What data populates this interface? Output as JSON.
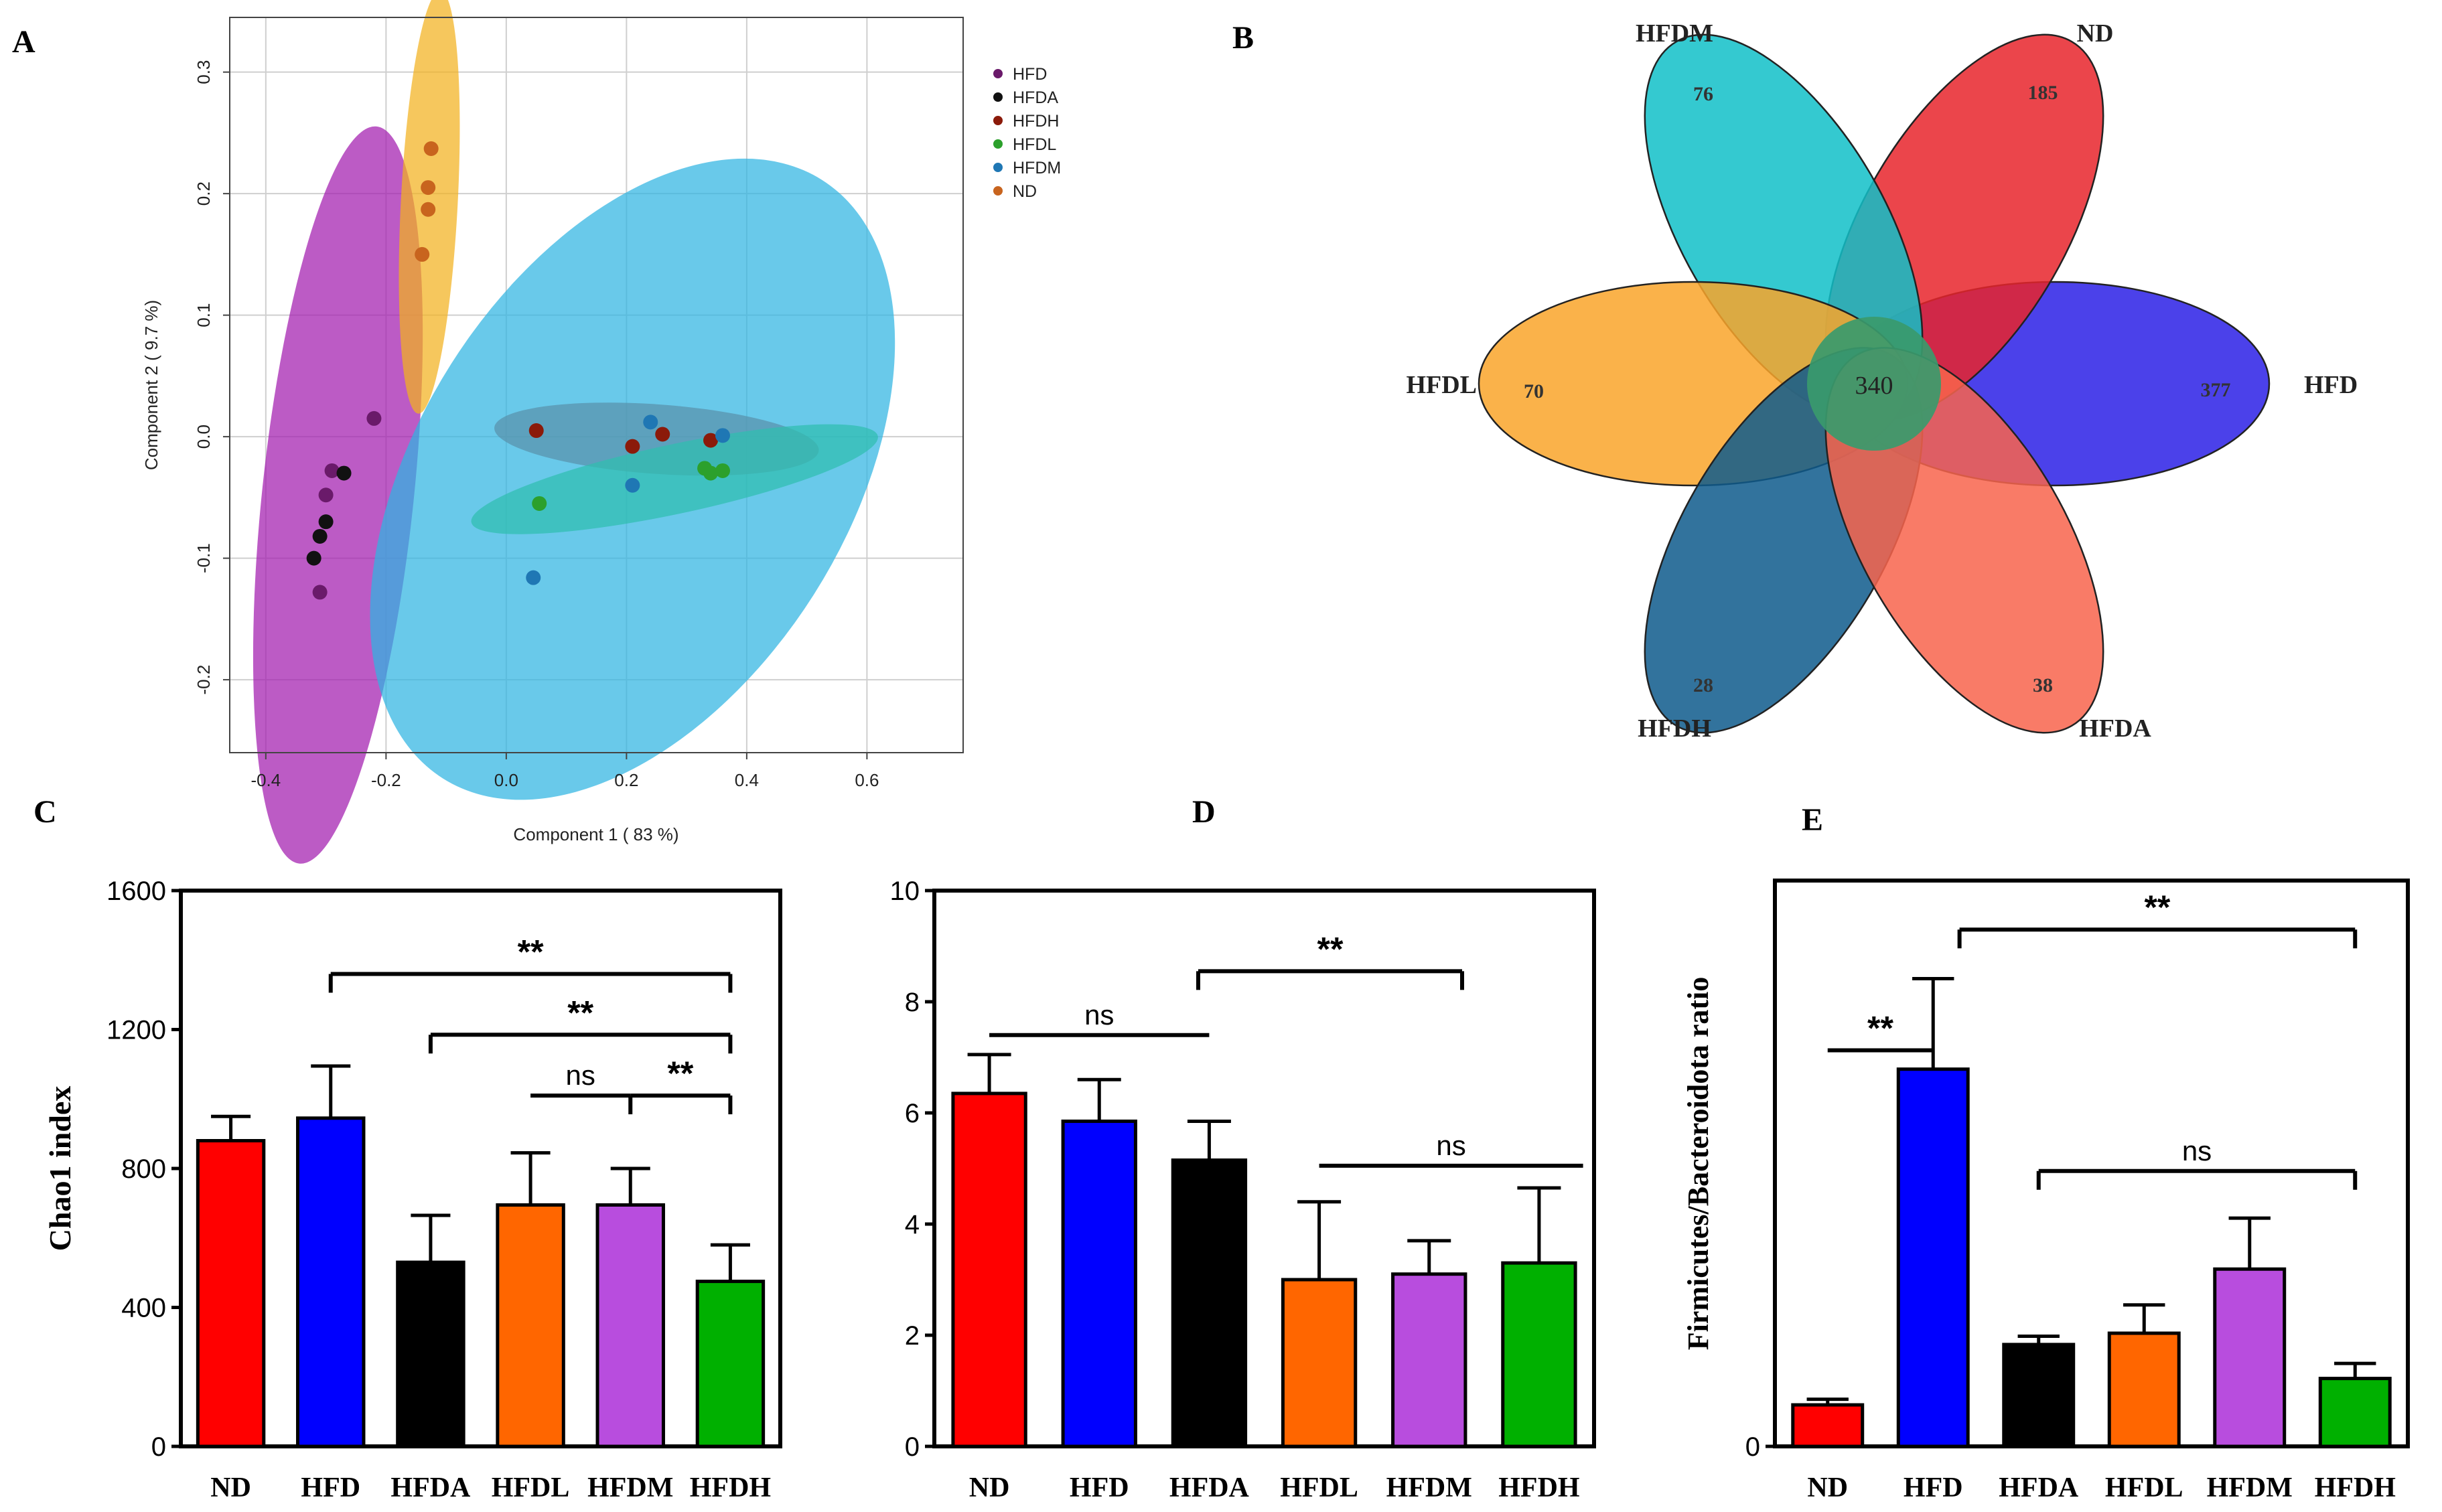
{
  "panel_letters": {
    "a": "A",
    "b": "B",
    "c": "C",
    "d": "D",
    "e": "E"
  },
  "colors": {
    "ND": "#ff0000",
    "HFD": "#0000ff",
    "HFDA": "#000000",
    "HFDL": "#ff6600",
    "HFDM": "#b84dde",
    "HFDH": "#00b000",
    "pca_HFD": "#6a1a6a",
    "pca_HFDA": "#111111",
    "pca_HFDH": "#8b1a0a",
    "pca_HFDL": "#2ca02c",
    "pca_HFDM": "#1f77b4",
    "pca_ND": "#c8641e"
  },
  "chart_data": [
    {
      "type": "scatter",
      "panel": "A",
      "xlabel": "Component 1 ( 83 %)",
      "ylabel": "Component 2 ( 9.7 %)",
      "xlim": [
        -0.46,
        0.76
      ],
      "ylim": [
        -0.26,
        0.345
      ],
      "xticks": [
        -0.4,
        -0.2,
        0.0,
        0.2,
        0.4,
        0.6
      ],
      "xtick_labels": [
        "-0.4",
        "-0.2",
        "0.0",
        "0.2",
        "0.4",
        "0.6"
      ],
      "yticks": [
        -0.2,
        -0.1,
        0.0,
        0.1,
        0.2,
        0.3
      ],
      "ytick_labels": [
        "-0.2",
        "-0.1",
        "0.0",
        "0.1",
        "0.2",
        "0.3"
      ],
      "grid": true,
      "legend": "top-right outside",
      "series": [
        {
          "name": "HFD",
          "color_key": "pca_HFD",
          "points": [
            [
              -0.22,
              0.015
            ],
            [
              -0.29,
              -0.028
            ],
            [
              -0.3,
              -0.048
            ],
            [
              -0.31,
              -0.128
            ]
          ],
          "ellipse": {
            "center": [
              -0.28,
              -0.048
            ],
            "len": 0.31,
            "wid": 0.024,
            "angle_deg": 78
          }
        },
        {
          "name": "HFDA",
          "color_key": "pca_HFDA",
          "points": [
            [
              -0.27,
              -0.03
            ],
            [
              -0.3,
              -0.07
            ],
            [
              -0.31,
              -0.082
            ],
            [
              -0.32,
              -0.1
            ]
          ],
          "ellipse": null
        },
        {
          "name": "HFDH",
          "color_key": "pca_HFDH",
          "points": [
            [
              0.05,
              0.005
            ],
            [
              0.21,
              -0.008
            ],
            [
              0.26,
              0.002
            ],
            [
              0.34,
              -0.003
            ]
          ],
          "ellipse": {
            "center": [
              0.25,
              -0.002
            ],
            "len": 0.27,
            "wid": 0.011,
            "angle_deg": -2
          }
        },
        {
          "name": "HFDL",
          "color_key": "pca_HFDL",
          "points": [
            [
              0.055,
              -0.055
            ],
            [
              0.33,
              -0.026
            ],
            [
              0.34,
              -0.03
            ],
            [
              0.36,
              -0.028
            ]
          ],
          "ellipse": {
            "center": [
              0.28,
              -0.035
            ],
            "len": 0.34,
            "wid": 0.011,
            "angle_deg": 6
          }
        },
        {
          "name": "HFDM",
          "color_key": "pca_HFDM",
          "points": [
            [
              0.24,
              0.012
            ],
            [
              0.36,
              0.001
            ],
            [
              0.21,
              -0.04
            ],
            [
              0.045,
              -0.116
            ]
          ],
          "ellipse": {
            "center": [
              0.21,
              -0.035
            ],
            "len": 0.4,
            "wid": 0.068,
            "angle_deg": 38
          }
        },
        {
          "name": "ND",
          "color_key": "pca_ND",
          "points": [
            [
              -0.14,
              0.15
            ],
            [
              -0.13,
              0.187
            ],
            [
              -0.13,
              0.205
            ],
            [
              -0.125,
              0.237
            ]
          ],
          "ellipse": {
            "center": [
              -0.128,
              0.193
            ],
            "len": 0.175,
            "wid": 0.009,
            "angle_deg": 84
          }
        }
      ]
    },
    {
      "type": "venn-flower",
      "panel": "B",
      "core_value": "340",
      "petals": [
        {
          "name": "HFD",
          "value": "377",
          "fill": "#2c20e6"
        },
        {
          "name": "ND",
          "value": "185",
          "fill": "#e8252b"
        },
        {
          "name": "HFDM",
          "value": "76",
          "fill": "#10c0c8"
        },
        {
          "name": "HFDL",
          "value": "70",
          "fill": "#f9a52a"
        },
        {
          "name": "HFDH",
          "value": "28",
          "fill": "#0e5b8c"
        },
        {
          "name": "HFDA",
          "value": "38",
          "fill": "#f8644c"
        }
      ]
    },
    {
      "type": "bar",
      "panel": "C",
      "ylabel": "Chao1 index",
      "categories": [
        "ND",
        "HFD",
        "HFDA",
        "HFDL",
        "HFDM",
        "HFDH"
      ],
      "values": [
        880,
        945,
        530,
        695,
        695,
        475
      ],
      "errors": [
        70,
        150,
        135,
        150,
        105,
        105
      ],
      "ylim": [
        0,
        1600
      ],
      "yticks": [
        0,
        400,
        800,
        1200,
        1600
      ],
      "ytick_labels": [
        "0",
        "400",
        "800",
        "1200",
        "1600"
      ],
      "significance": [
        {
          "from": 1,
          "to": 5,
          "label": "**",
          "y": 1360
        },
        {
          "from": 2,
          "to": 5,
          "label": "**",
          "y": 1185
        },
        {
          "from": 3,
          "to": 4,
          "label": "ns",
          "y": 1010
        },
        {
          "from": 4,
          "to": 5,
          "label": "**",
          "y": 1010
        }
      ]
    },
    {
      "type": "bar",
      "panel": "D",
      "ylabel": "",
      "categories": [
        "ND",
        "HFD",
        "HFDA",
        "HFDL",
        "HFDM",
        "HFDH"
      ],
      "values": [
        6.35,
        5.85,
        5.15,
        3.0,
        3.1,
        3.3
      ],
      "errors": [
        0.7,
        0.75,
        0.7,
        1.4,
        0.6,
        1.35
      ],
      "ylim": [
        0,
        10
      ],
      "yticks": [
        0,
        2,
        4,
        6,
        8,
        10
      ],
      "ytick_labels": [
        "0",
        "2",
        "4",
        "6",
        "8",
        "10"
      ],
      "significance": [
        {
          "from": 0,
          "to": 2,
          "label": "ns",
          "y": 7.4
        },
        {
          "from": 1.9,
          "to": 4.3,
          "label": "**",
          "y": 8.55
        },
        {
          "from": 3,
          "to": 5.4,
          "label": "ns",
          "y": 5.05
        }
      ]
    },
    {
      "type": "bar",
      "panel": "E",
      "ylabel": "Firmicutes/Bacteroidota ratio",
      "categories": [
        "ND",
        "HFD",
        "HFDA",
        "HFDL",
        "HFDM",
        "HFDH"
      ],
      "values": [
        0.11,
        1.0,
        0.27,
        0.3,
        0.47,
        0.18
      ],
      "errors": [
        0.015,
        0.24,
        0.022,
        0.075,
        0.135,
        0.04
      ],
      "ylim": [
        0,
        1.5
      ],
      "yticks": [
        0
      ],
      "ytick_labels": [
        "0"
      ],
      "significance": [
        {
          "from": 0,
          "to": 1,
          "label": "**",
          "y": 1.05
        },
        {
          "from": 1.25,
          "to": 5,
          "label": "**",
          "y": 1.37
        },
        {
          "from": 2,
          "to": 5,
          "label": "ns",
          "y": 0.73
        }
      ]
    }
  ]
}
